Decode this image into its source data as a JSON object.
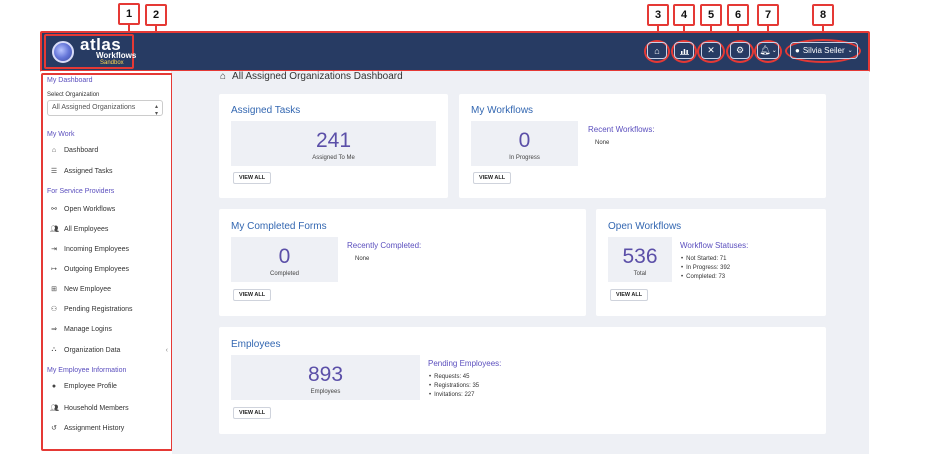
{
  "callouts": [
    "1",
    "2",
    "3",
    "4",
    "5",
    "6",
    "7",
    "8"
  ],
  "header": {
    "brand": "atlas",
    "product": "Workflows",
    "env": "Sandbox",
    "user_name": "Silvia Seiler",
    "icons": [
      "home-icon",
      "chart-icon",
      "tools-icon",
      "gears-icon",
      "bell-icon",
      "user-circle-icon"
    ]
  },
  "sidebar": {
    "my_dashboard": "My Dashboard",
    "select_org_label": "Select Organization",
    "select_org_value": "All Assigned Organizations",
    "my_work": "My Work",
    "dashboard": "Dashboard",
    "assigned_tasks": "Assigned Tasks",
    "for_providers": "For Service Providers",
    "open_workflows": "Open Workflows",
    "all_employees": "All Employees",
    "incoming_employees": "Incoming Employees",
    "outgoing_employees": "Outgoing Employees",
    "new_employee": "New Employee",
    "pending_registrations": "Pending Registrations",
    "manage_logins": "Manage Logins",
    "organization_data": "Organization Data",
    "my_employee_info": "My Employee Information",
    "employee_profile": "Employee Profile",
    "household_members": "Household Members",
    "assignment_history": "Assignment History"
  },
  "main": {
    "page_title": "All Assigned Organizations Dashboard",
    "view_all": "VIEW ALL",
    "assigned_tasks": {
      "title": "Assigned Tasks",
      "count": "241",
      "label": "Assigned To Me"
    },
    "my_workflows": {
      "title": "My Workflows",
      "count": "0",
      "label": "In Progress",
      "recent_title": "Recent Workflows:",
      "recent_value": "None"
    },
    "completed_forms": {
      "title": "My Completed Forms",
      "count": "0",
      "label": "Completed",
      "recent_title": "Recently Completed:",
      "recent_value": "None"
    },
    "open_workflows": {
      "title": "Open Workflows",
      "count": "536",
      "label": "Total",
      "status_title": "Workflow Statuses:",
      "statuses": [
        "Not Started: 71",
        "In Progress: 392",
        "Completed: 73"
      ]
    },
    "employees": {
      "title": "Employees",
      "count": "893",
      "label": "Employees",
      "pending_title": "Pending Employees:",
      "pending": [
        "Requests: 45",
        "Registrations: 35",
        "Invitations: 227"
      ]
    }
  }
}
